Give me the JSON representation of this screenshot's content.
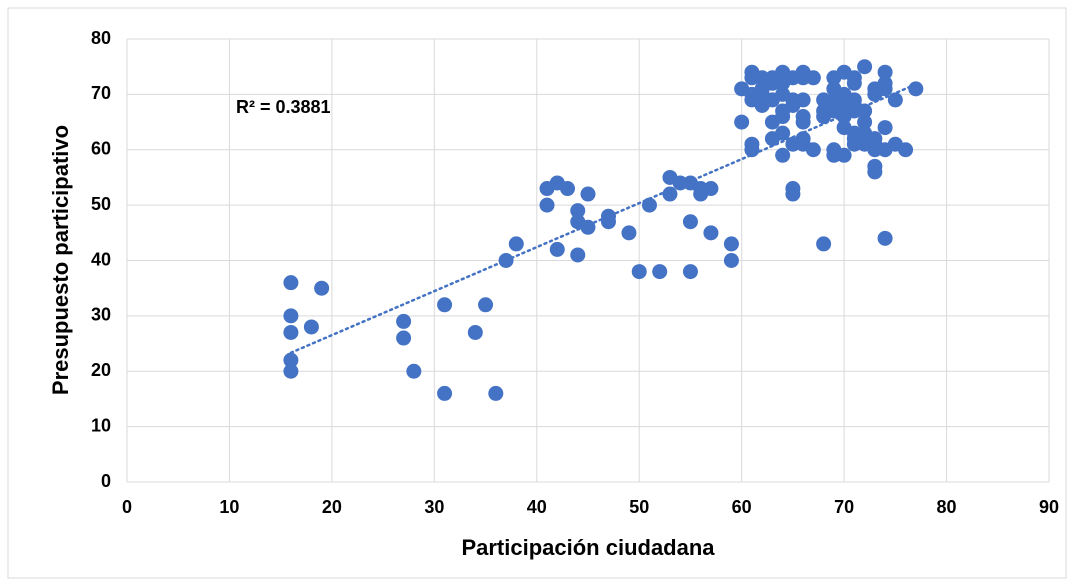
{
  "chart_data": {
    "type": "scatter",
    "xlabel": "Participación ciudadana",
    "ylabel": "Presupuesto participativo",
    "annotation": "R² = 0.3881",
    "color": "#4472c4",
    "trendline": "linear",
    "grid": true,
    "xlim": [
      0,
      90
    ],
    "xticks": [
      0,
      10,
      20,
      30,
      40,
      50,
      60,
      70,
      80,
      90
    ],
    "ylim": [
      0,
      80
    ],
    "yticks": [
      0,
      10,
      20,
      30,
      40,
      50,
      60,
      70,
      80
    ],
    "x": [
      16,
      16,
      16,
      16,
      16,
      18,
      19,
      27,
      27,
      28,
      31,
      31,
      34,
      35,
      36,
      37,
      38,
      41,
      41,
      42,
      42,
      43,
      44,
      44,
      44,
      45,
      45,
      47,
      47,
      49,
      50,
      51,
      52,
      53,
      53,
      54,
      55,
      55,
      55,
      56,
      56,
      57,
      57,
      59,
      59,
      60,
      60,
      61,
      61,
      61,
      61,
      61,
      61,
      62,
      62,
      62,
      62,
      63,
      63,
      63,
      63,
      63,
      64,
      64,
      64,
      64,
      64,
      64,
      64,
      65,
      65,
      65,
      65,
      65,
      65,
      66,
      66,
      66,
      66,
      66,
      66,
      66,
      67,
      67,
      68,
      68,
      68,
      68,
      69,
      69,
      69,
      69,
      69,
      69,
      69,
      70,
      70,
      70,
      70,
      70,
      70,
      71,
      71,
      71,
      71,
      71,
      71,
      71,
      71,
      72,
      72,
      72,
      72,
      72,
      73,
      73,
      73,
      73,
      73,
      73,
      73,
      74,
      74,
      74,
      74,
      74,
      74,
      75,
      75,
      76,
      77
    ],
    "values": [
      36,
      30,
      27,
      22,
      20,
      28,
      35,
      29,
      26,
      20,
      32,
      16,
      27,
      32,
      16,
      40,
      43,
      53,
      50,
      54,
      42,
      53,
      49,
      47,
      41,
      52,
      46,
      48,
      47,
      45,
      38,
      50,
      38,
      55,
      52,
      54,
      54,
      47,
      38,
      53,
      52,
      53,
      45,
      43,
      40,
      71,
      65,
      74,
      73,
      70,
      69,
      61,
      60,
      73,
      71,
      70,
      68,
      73,
      72,
      69,
      65,
      62,
      74,
      72,
      70,
      67,
      66,
      63,
      59,
      73,
      69,
      68,
      61,
      53,
      52,
      74,
      73,
      69,
      66,
      65,
      62,
      61,
      73,
      60,
      69,
      67,
      66,
      43,
      73,
      71,
      69,
      68,
      67,
      60,
      59,
      74,
      70,
      68,
      66,
      64,
      59,
      73,
      72,
      69,
      68,
      67,
      63,
      62,
      61,
      75,
      67,
      65,
      63,
      61,
      71,
      70,
      62,
      61,
      60,
      57,
      56,
      74,
      72,
      71,
      64,
      60,
      44,
      69,
      61,
      60,
      71
    ]
  }
}
